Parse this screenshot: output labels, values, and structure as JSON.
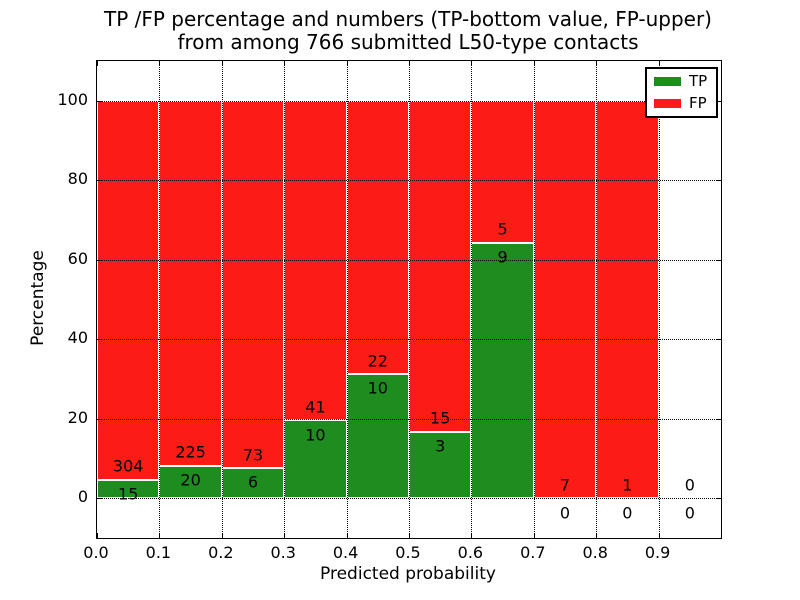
{
  "figure": {
    "title_line1": "TP /FP percentage and numbers (TP-bottom value, FP-upper)",
    "title_line2": "from among 766 submitted L50-type contacts"
  },
  "chart_data": {
    "type": "bar",
    "stacked": true,
    "orientation": "vertical",
    "title": "TP /FP percentage and numbers (TP-bottom value, FP-upper) from among 766 submitted L50-type contacts",
    "xlabel": "Predicted probability",
    "ylabel": "Percentage",
    "xlim": [
      0.0,
      1.0
    ],
    "ylim": [
      -10,
      110
    ],
    "xtick_labels": [
      "0.0",
      "0.1",
      "0.2",
      "0.3",
      "0.4",
      "0.5",
      "0.6",
      "0.7",
      "0.8",
      "0.9"
    ],
    "xtick_values": [
      0.0,
      0.1,
      0.2,
      0.3,
      0.4,
      0.5,
      0.6,
      0.7,
      0.8,
      0.9
    ],
    "ytick_values": [
      0,
      20,
      40,
      60,
      80,
      100
    ],
    "x_gridlines": [
      0.1,
      0.2,
      0.3,
      0.4,
      0.5,
      0.6,
      0.7,
      0.8,
      0.9
    ],
    "grid": {
      "visible": true,
      "style": "dotted"
    },
    "total_contacts": 766,
    "bin_width": 0.1,
    "colors": {
      "tp": "#1f8c1f",
      "fp": "#fb1d15",
      "bar_edge": "#ffffff",
      "text": "#000000",
      "background": "#ffffff"
    },
    "legend": {
      "position": "upper-right",
      "entries": [
        {
          "label": "TP",
          "color_key": "tp"
        },
        {
          "label": "FP",
          "color_key": "fp"
        }
      ]
    },
    "categories": [
      "0.0-0.1",
      "0.1-0.2",
      "0.2-0.3",
      "0.3-0.4",
      "0.4-0.5",
      "0.5-0.6",
      "0.6-0.7",
      "0.7-0.8",
      "0.8-0.9",
      "0.9-1.0"
    ],
    "series": [
      {
        "name": "TP",
        "percent_values": [
          4.7,
          8.16,
          7.59,
          19.61,
          31.25,
          16.67,
          64.29,
          0,
          0,
          0
        ],
        "counts": [
          15,
          20,
          6,
          10,
          10,
          3,
          9,
          0,
          0,
          0
        ]
      },
      {
        "name": "FP",
        "percent_values": [
          95.3,
          91.84,
          92.41,
          80.39,
          68.75,
          83.33,
          35.71,
          100,
          100,
          0
        ],
        "counts": [
          304,
          225,
          73,
          41,
          22,
          15,
          5,
          7,
          1,
          0
        ]
      }
    ],
    "bins": [
      {
        "x_start": 0.0,
        "x_end": 0.1,
        "tp_count": 15,
        "fp_count": 304,
        "tp_pct": 4.7,
        "has_bar": true
      },
      {
        "x_start": 0.1,
        "x_end": 0.2,
        "tp_count": 20,
        "fp_count": 225,
        "tp_pct": 8.16,
        "has_bar": true
      },
      {
        "x_start": 0.2,
        "x_end": 0.3,
        "tp_count": 6,
        "fp_count": 73,
        "tp_pct": 7.59,
        "has_bar": true
      },
      {
        "x_start": 0.3,
        "x_end": 0.4,
        "tp_count": 10,
        "fp_count": 41,
        "tp_pct": 19.61,
        "has_bar": true
      },
      {
        "x_start": 0.4,
        "x_end": 0.5,
        "tp_count": 10,
        "fp_count": 22,
        "tp_pct": 31.25,
        "has_bar": true
      },
      {
        "x_start": 0.5,
        "x_end": 0.6,
        "tp_count": 3,
        "fp_count": 15,
        "tp_pct": 16.67,
        "has_bar": true
      },
      {
        "x_start": 0.6,
        "x_end": 0.7,
        "tp_count": 9,
        "fp_count": 5,
        "tp_pct": 64.29,
        "has_bar": true
      },
      {
        "x_start": 0.7,
        "x_end": 0.8,
        "tp_count": 0,
        "fp_count": 7,
        "tp_pct": 0,
        "has_bar": true
      },
      {
        "x_start": 0.8,
        "x_end": 0.9,
        "tp_count": 0,
        "fp_count": 1,
        "tp_pct": 0,
        "has_bar": true
      },
      {
        "x_start": 0.9,
        "x_end": 1.0,
        "tp_count": 0,
        "fp_count": 0,
        "tp_pct": 0,
        "has_bar": false
      }
    ]
  }
}
